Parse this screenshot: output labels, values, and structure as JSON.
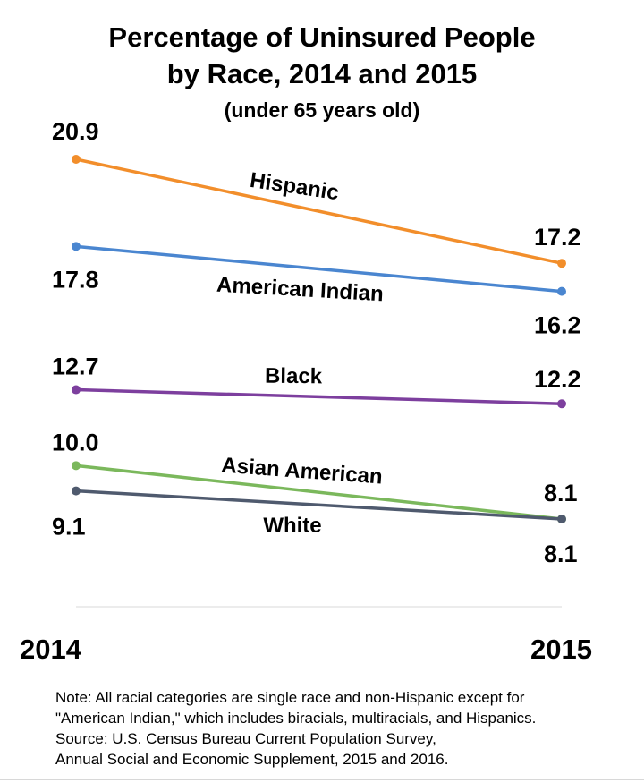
{
  "chart_data": {
    "type": "line",
    "title_line1": "Percentage of Uninsured People",
    "title_line2": "by Race, 2014 and 2015",
    "subtitle": "(under 65 years old)",
    "x": [
      "2014",
      "2015"
    ],
    "series": [
      {
        "name": "Hispanic",
        "values": [
          20.9,
          17.2
        ],
        "value_labels": [
          "20.9",
          "17.2"
        ],
        "color": "#F28E2B"
      },
      {
        "name": "American Indian",
        "values": [
          17.8,
          16.2
        ],
        "value_labels": [
          "17.8",
          "16.2"
        ],
        "color": "#4A86D0"
      },
      {
        "name": "Black",
        "values": [
          12.7,
          12.2
        ],
        "value_labels": [
          "12.7",
          "12.2"
        ],
        "color": "#7D3F9E"
      },
      {
        "name": "Asian American",
        "values": [
          10.0,
          8.1
        ],
        "value_labels": [
          "10.0",
          "8.1"
        ],
        "color": "#7BB85C"
      },
      {
        "name": "White",
        "values": [
          9.1,
          8.1
        ],
        "value_labels": [
          "9.1",
          "8.1"
        ],
        "color": "#4F5A6E"
      }
    ],
    "ylim": [
      4,
      21
    ],
    "grid": false,
    "legend": "inline"
  },
  "note": {
    "lines": [
      "Note: All racial categories are single race and non-Hispanic except for",
      "\"American Indian,\" which includes biracials, multiracials, and Hispanics.",
      "Source: U.S. Census Bureau Current Population Survey,",
      "Annual Social and Economic Supplement, 2015 and 2016."
    ]
  }
}
